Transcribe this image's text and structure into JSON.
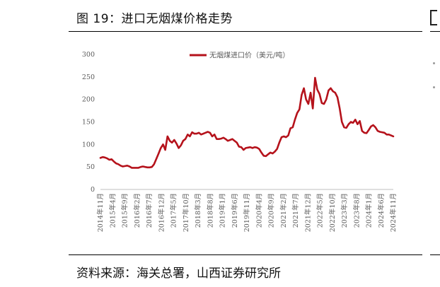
{
  "figure": {
    "title": "图 19：进口无烟煤价格走势",
    "source": "资料来源：海关总署，山西证券研究所"
  },
  "chart_data": {
    "type": "line",
    "title": "",
    "xlabel": "",
    "ylabel": "",
    "ylim": [
      0,
      300
    ],
    "yticks": [
      0,
      50,
      100,
      150,
      200,
      250,
      300
    ],
    "xtick_labels": [
      "2014年11月",
      "2015年4月",
      "2015年9月",
      "2016年2月",
      "2016年7月",
      "2016年12月",
      "2017年5月",
      "2017年10月",
      "2018年3月",
      "2018年8月",
      "2019年1月",
      "2019年6月",
      "2019年11月",
      "2020年4月",
      "2020年9月",
      "2021年2月",
      "2021年7月",
      "2021年12月",
      "2022年5月",
      "2022年10月",
      "2023年3月",
      "2023年8月",
      "2024年1月",
      "2024年6月",
      "2024年11月"
    ],
    "grid": false,
    "legend_position": "top-center",
    "line_color": "#b5121b",
    "series": [
      {
        "name": "无烟煤进口价（美元/吨）",
        "x_start": "2014年11月",
        "frequency": "monthly",
        "values": [
          70,
          72,
          71,
          69,
          66,
          67,
          62,
          58,
          56,
          53,
          51,
          52,
          53,
          51,
          48,
          48,
          48,
          48,
          50,
          51,
          50,
          49,
          49,
          50,
          56,
          68,
          80,
          92,
          100,
          88,
          118,
          108,
          104,
          110,
          102,
          92,
          98,
          108,
          112,
          122,
          118,
          127,
          124,
          124,
          126,
          122,
          124,
          126,
          128,
          126,
          118,
          122,
          112,
          112,
          113,
          115,
          112,
          108,
          110,
          112,
          108,
          104,
          95,
          94,
          88,
          92,
          93,
          94,
          92,
          94,
          93,
          90,
          82,
          75,
          74,
          78,
          82,
          80,
          84,
          90,
          104,
          116,
          118,
          116,
          120,
          136,
          138,
          155,
          170,
          178,
          210,
          225,
          200,
          190,
          215,
          180,
          248,
          222,
          212,
          192,
          190,
          200,
          220,
          225,
          218,
          215,
          205,
          180,
          150,
          138,
          137,
          145,
          150,
          148,
          155,
          145,
          152,
          130,
          126,
          125,
          132,
          140,
          143,
          138,
          130,
          128,
          127,
          126,
          122,
          122,
          120,
          118
        ]
      }
    ]
  }
}
